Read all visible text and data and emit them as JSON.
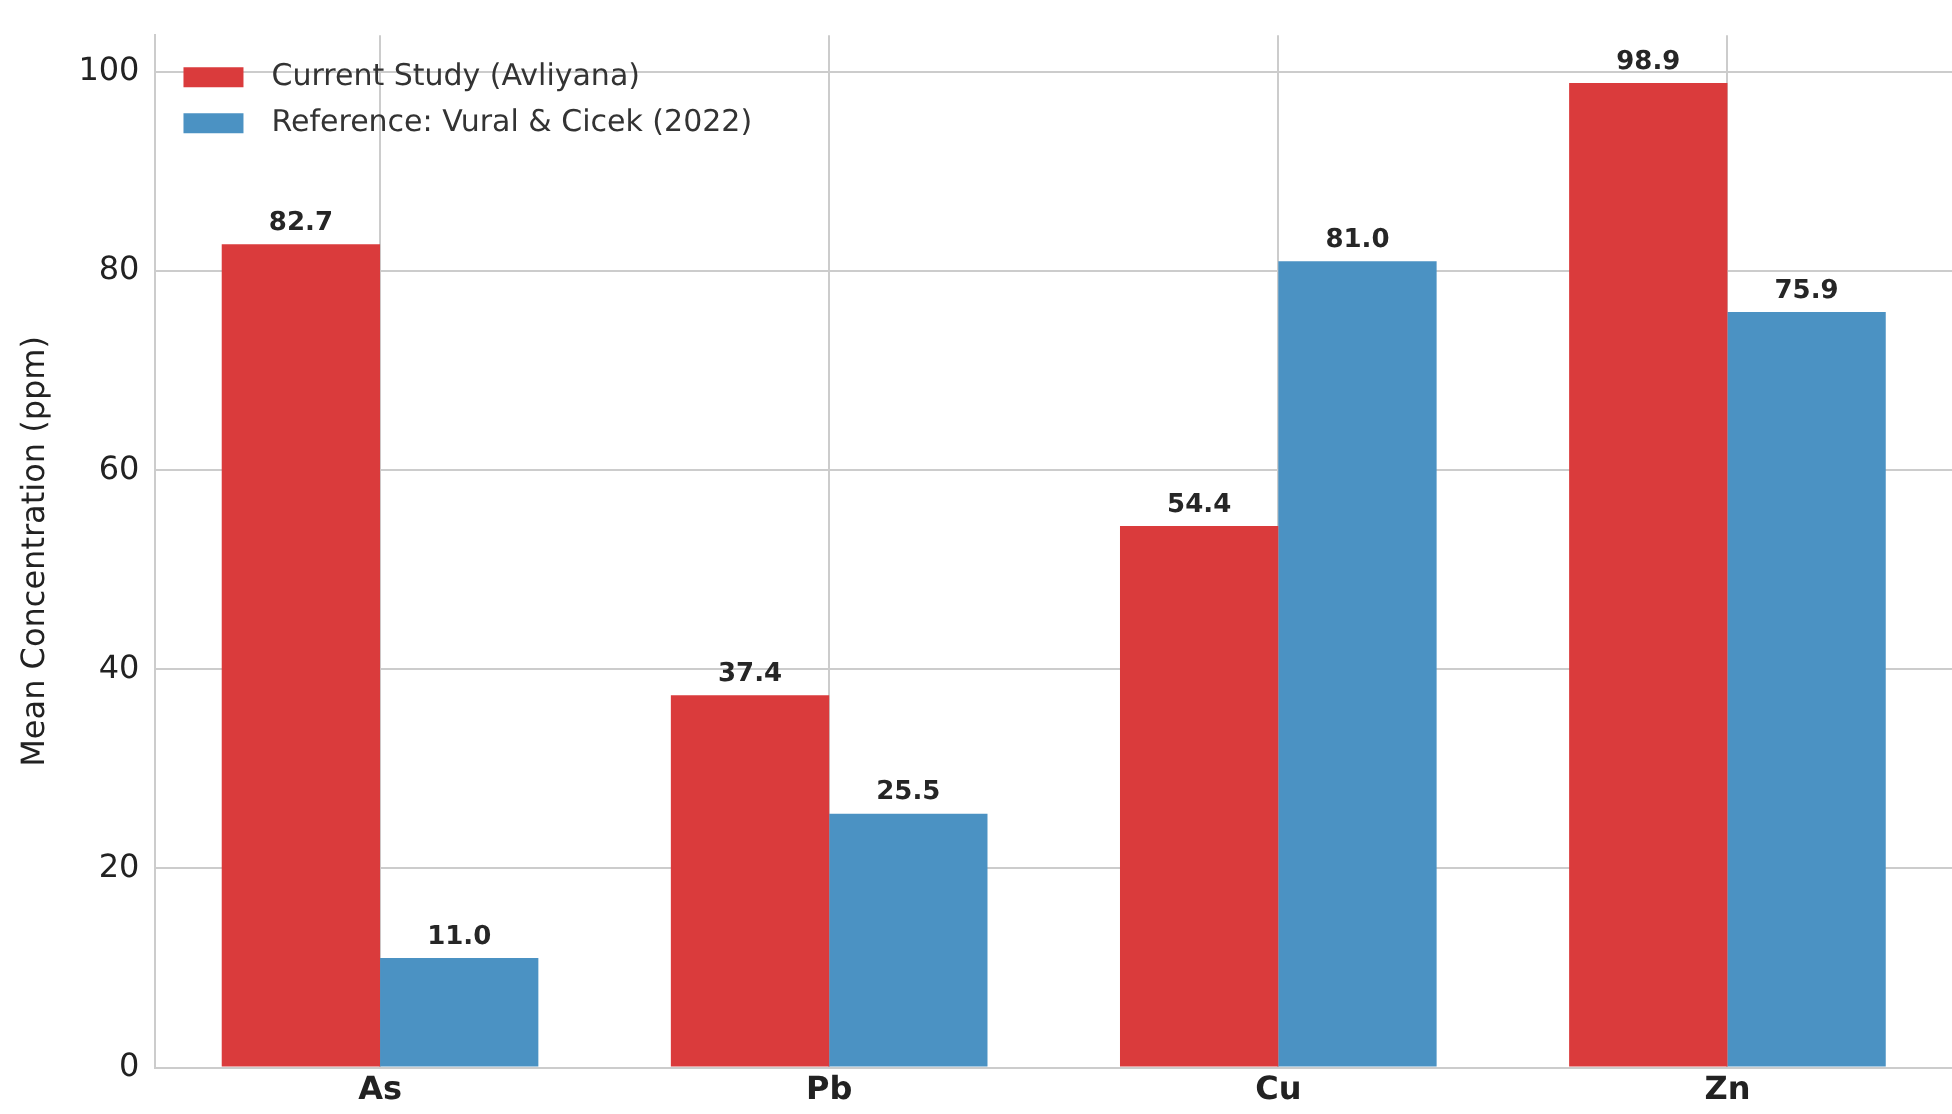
{
  "chart_data": {
    "type": "bar",
    "ylabel": "Mean Concentration (ppm)",
    "categories": [
      "As",
      "Pb",
      "Cu",
      "Zn"
    ],
    "series": [
      {
        "name": "Current Study (Avliyana)",
        "color": "#da3b3c",
        "values": [
          82.7,
          37.4,
          54.4,
          98.9
        ],
        "value_labels": [
          "82.7",
          "37.4",
          "54.4",
          "98.9"
        ]
      },
      {
        "name": "Reference: Vural & Cicek (2022)",
        "color": "#4b92c3",
        "values": [
          11.0,
          25.5,
          81.0,
          75.9
        ],
        "value_labels": [
          "11.0",
          "25.5",
          "81.0",
          "75.9"
        ]
      }
    ],
    "ylim": [
      0,
      103.7
    ],
    "yticks": [
      0,
      20,
      40,
      60,
      80,
      100
    ],
    "grid": true,
    "legend": "top left"
  }
}
